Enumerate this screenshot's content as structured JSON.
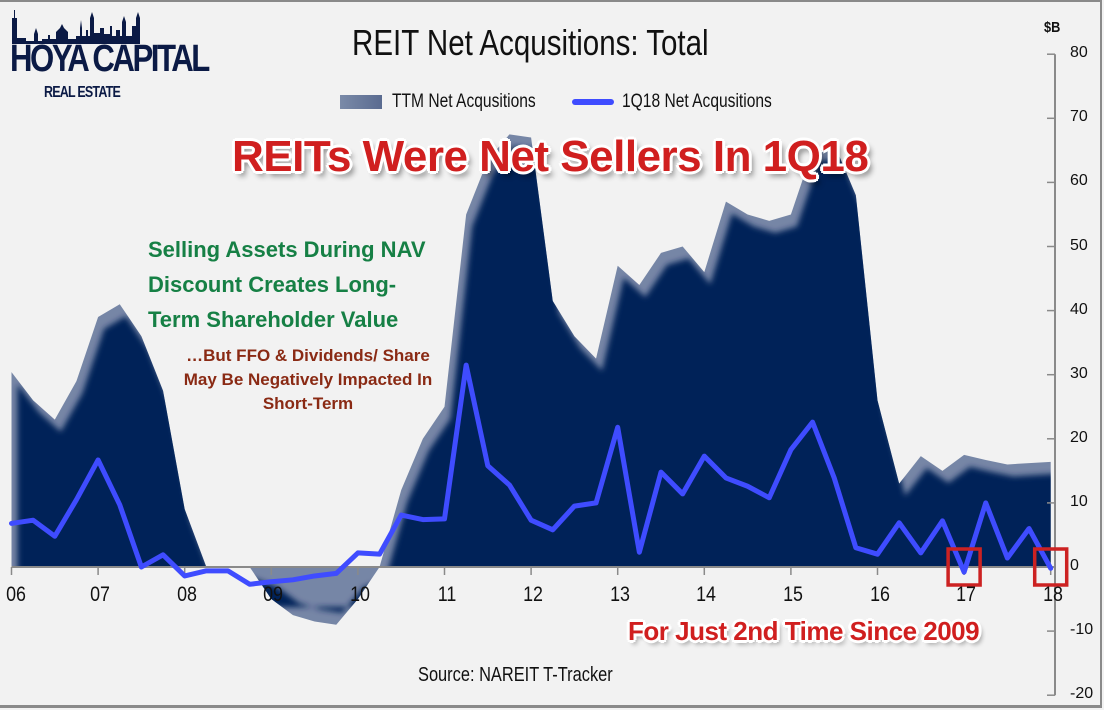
{
  "logo": {
    "name": "HOYA CAPITAL",
    "subtitle": "REAL ESTATE"
  },
  "title": "REIT Net Acqusitions: Total",
  "legend": {
    "area_label": "TTM Net Acqusitions",
    "line_label": "1Q18 Net Acqusitions"
  },
  "headline": "REITs Were Net Sellers In 1Q18",
  "annotations": {
    "green_note": "Selling Assets During NAV Discount Creates Long-Term Shareholder Value",
    "brown_note": "…But FFO & Dividends/ Share May Be Negatively Impacted In Short-Term",
    "bottom_note": "For Just 2nd Time Since 2009"
  },
  "source": "Source: NAREIT T-Tracker",
  "y_unit": "$B",
  "colors": {
    "background": "#f2f2f2",
    "area_fill": "#022158",
    "area_fringe": "#7686a6",
    "line": "#3f4cff",
    "headline_red": "#d01f1f",
    "green_text": "#168045",
    "brown_text": "#8a2a14",
    "highlight_box": "#cc2222",
    "axis": "#8a8a8a"
  },
  "chart_data": {
    "type": "area+line",
    "title": "REIT Net Acqusitions: Total",
    "xlabel": "",
    "ylabel": "$B",
    "ylim": [
      -20,
      80
    ],
    "yticks": [
      80,
      70,
      60,
      50,
      40,
      30,
      20,
      10,
      0,
      -10,
      -20
    ],
    "xtick_labels": [
      "06",
      "07",
      "08",
      "09",
      "10",
      "11",
      "12",
      "13",
      "14",
      "15",
      "16",
      "17",
      "18"
    ],
    "x_frequency": "quarterly",
    "x": [
      "06Q1",
      "06Q2",
      "06Q3",
      "06Q4",
      "07Q1",
      "07Q2",
      "07Q3",
      "07Q4",
      "08Q1",
      "08Q2",
      "08Q3",
      "08Q4",
      "09Q1",
      "09Q2",
      "09Q3",
      "09Q4",
      "10Q1",
      "10Q2",
      "10Q3",
      "10Q4",
      "11Q1",
      "11Q2",
      "11Q3",
      "11Q4",
      "12Q1",
      "12Q2",
      "12Q3",
      "12Q4",
      "13Q1",
      "13Q2",
      "13Q3",
      "13Q4",
      "14Q1",
      "14Q2",
      "14Q3",
      "14Q4",
      "15Q1",
      "15Q2",
      "15Q3",
      "15Q4",
      "16Q1",
      "16Q2",
      "16Q3",
      "16Q4",
      "17Q1",
      "17Q2",
      "17Q3",
      "17Q4",
      "18Q1"
    ],
    "grid": false,
    "legend_position": "top",
    "series": [
      {
        "name": "TTM Net Acqusitions",
        "type": "area",
        "values": [
          30.4,
          26,
          23,
          29,
          39,
          41,
          36,
          27.5,
          9,
          0,
          0,
          0,
          -5,
          -7.5,
          -8.5,
          -9,
          -5,
          0,
          12,
          20,
          25,
          55,
          63.5,
          67.5,
          67,
          41.5,
          36,
          32.5,
          47,
          44,
          49,
          50,
          46,
          57,
          55,
          54,
          55,
          65,
          66,
          58,
          26,
          13,
          17.3,
          15,
          17.5,
          16.7,
          16,
          16.2,
          16.4
        ]
      },
      {
        "name": "1Q18 Net Acqusitions",
        "type": "line",
        "values": [
          6.8,
          7.3,
          4.8,
          10.5,
          16.7,
          9.7,
          0,
          1.9,
          -1.4,
          -0.6,
          -0.6,
          -2.7,
          -2.3,
          -2,
          -1.4,
          -1,
          2.2,
          2,
          8.1,
          7.4,
          7.5,
          31.5,
          15.8,
          12.8,
          7.3,
          5.8,
          9.5,
          10,
          21.8,
          2.3,
          14.8,
          11.4,
          17.3,
          13.9,
          12.6,
          10.8,
          18.3,
          22.6,
          13.9,
          3,
          2,
          6.9,
          2.2,
          7.2,
          -0.8,
          10,
          1.4,
          6,
          -0.2
        ]
      }
    ],
    "highlights": [
      {
        "label": "17Q1",
        "note": "net seller"
      },
      {
        "label": "18Q1",
        "note": "net seller"
      }
    ]
  }
}
